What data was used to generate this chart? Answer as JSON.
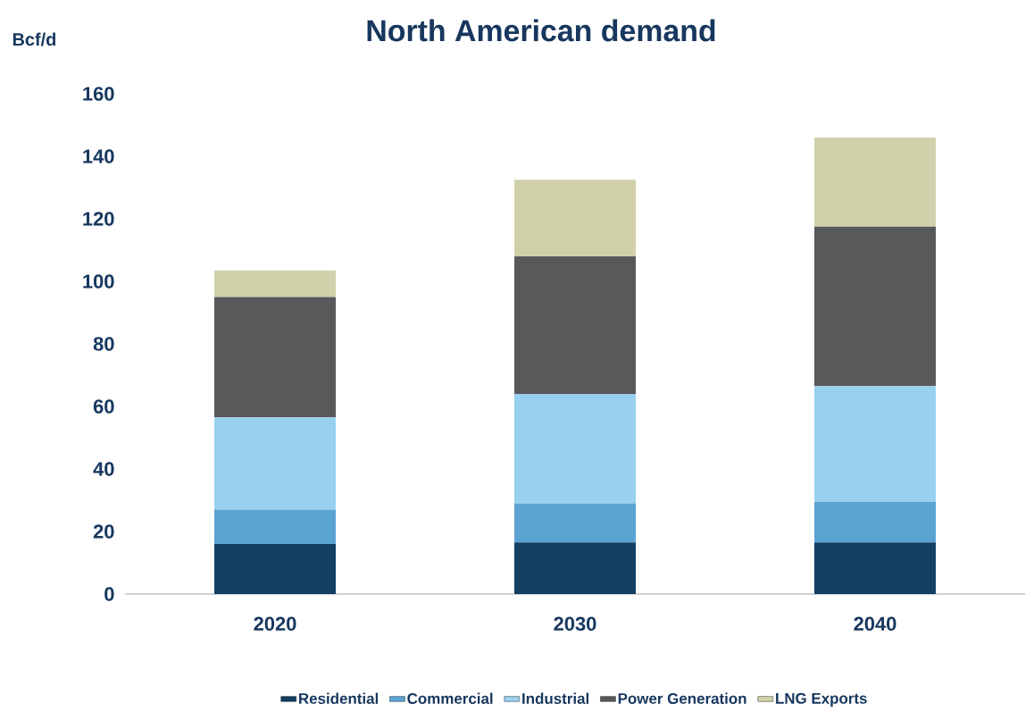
{
  "chart_data": {
    "type": "bar",
    "title": "North American demand",
    "ylabel": "Bcf/d",
    "categories": [
      "2020",
      "2030",
      "2040"
    ],
    "series": [
      {
        "name": "Residential",
        "color": "#133f63",
        "values": [
          16,
          16.5,
          16.5
        ]
      },
      {
        "name": "Commercial",
        "color": "#5ba3d3",
        "values": [
          11,
          12.5,
          13
        ]
      },
      {
        "name": "Industrial",
        "color": "#9ad0ef",
        "values": [
          29.5,
          35,
          37
        ]
      },
      {
        "name": "Power Generation",
        "color": "#58595b",
        "values": [
          38.5,
          44,
          51
        ]
      },
      {
        "name": "LNG Exports",
        "color": "#d0d1aa",
        "values": [
          8.5,
          24.5,
          28.5
        ]
      }
    ],
    "stacked": true,
    "ylim": [
      0,
      160
    ],
    "yticks": [
      0,
      20,
      40,
      60,
      80,
      100,
      120,
      140,
      160
    ],
    "legend": "bottom"
  }
}
